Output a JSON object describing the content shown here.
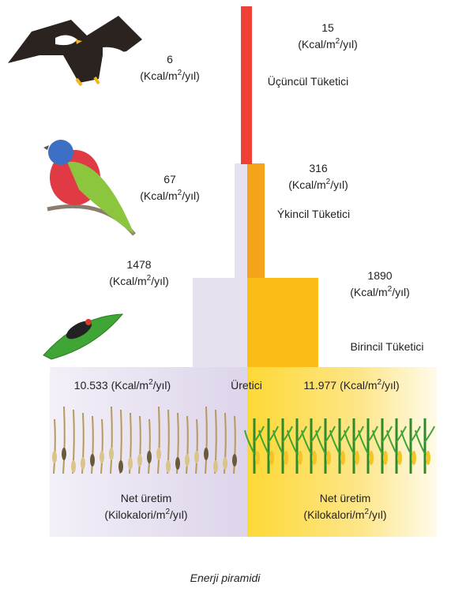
{
  "tertiary": {
    "left_value": "6",
    "right_value": "15",
    "label": "Üçüncül Tüketici"
  },
  "secondary": {
    "left_value": "67",
    "right_value": "316",
    "label": "Ýkincil Tüketici"
  },
  "primary": {
    "left_value": "1478",
    "right_value": "1890",
    "label": "Birincil Tüketici"
  },
  "producer": {
    "left_value": "10.533",
    "right_value": "11.977",
    "label": "Üretici",
    "net_label": "Net üretim",
    "net_unit_prefix": "(Kilokalori/m",
    "net_unit_suffix": "/yıl)"
  },
  "unit": {
    "prefix": "(Kcal/m",
    "exponent": "2",
    "suffix": "/yıl)"
  },
  "caption": "Enerji piramidi"
}
